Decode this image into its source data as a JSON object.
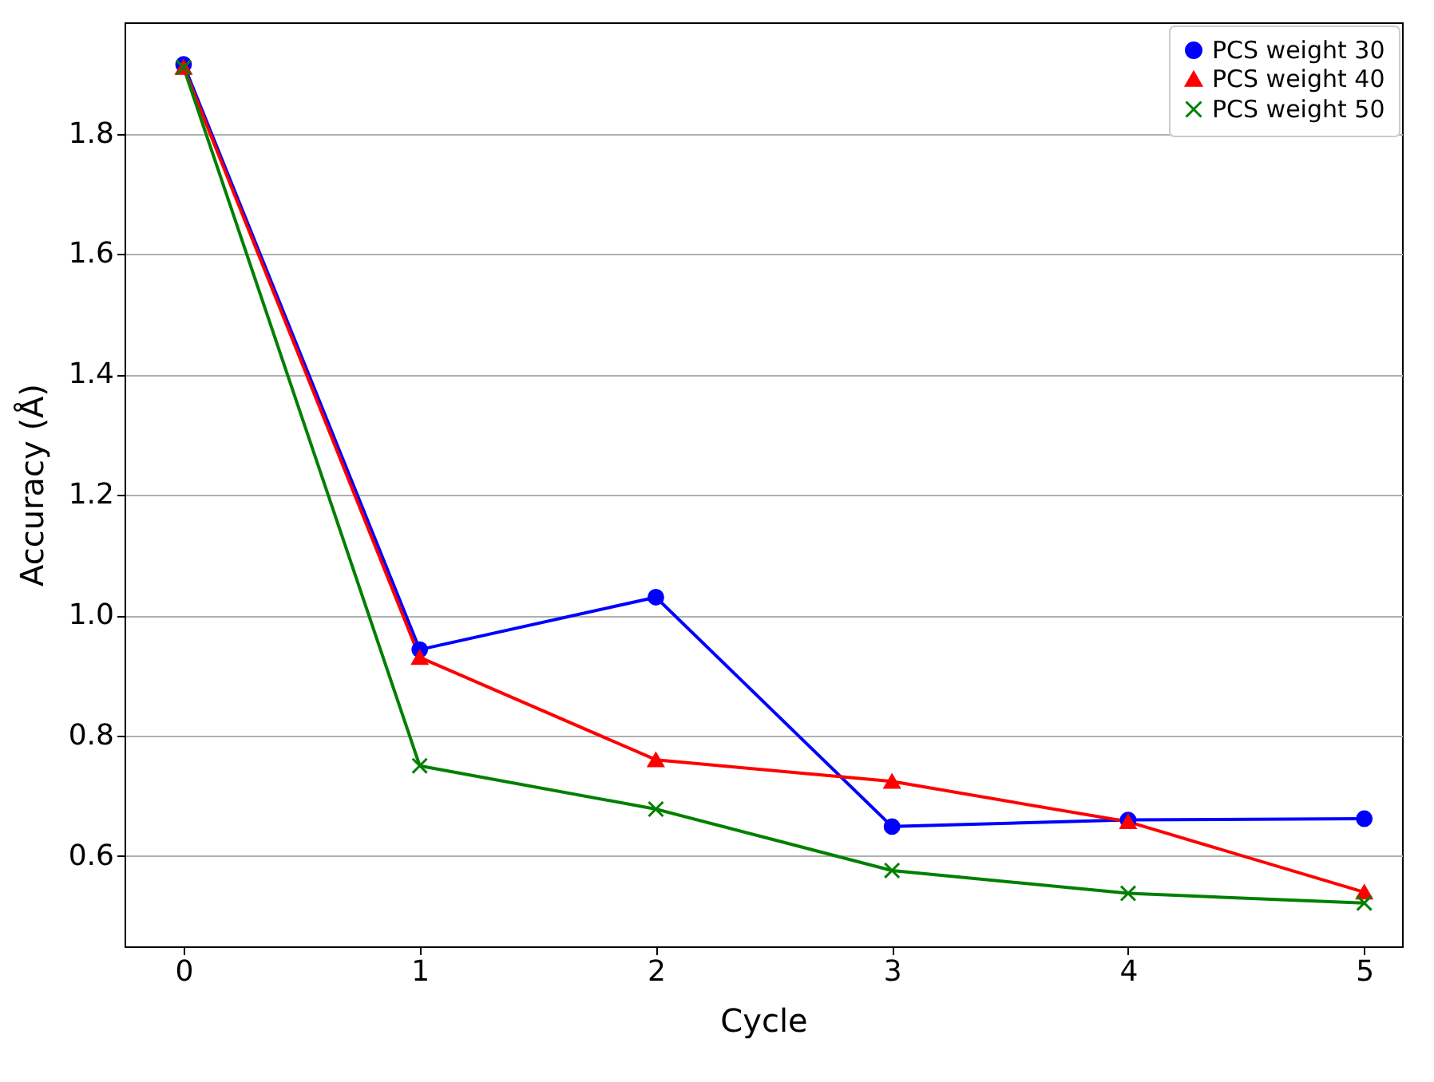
{
  "chart_data": {
    "type": "line",
    "xlabel": "Cycle",
    "ylabel": "Accuracy (Å)",
    "x": [
      0,
      1,
      2,
      3,
      4,
      5
    ],
    "series": [
      {
        "name": "PCS weight 30",
        "color": "#0000ff",
        "marker": "circle",
        "values": [
          1.915,
          0.943,
          1.03,
          0.649,
          0.66,
          0.662
        ]
      },
      {
        "name": "PCS weight 40",
        "color": "#ff0000",
        "marker": "triangle",
        "values": [
          1.91,
          0.93,
          0.76,
          0.724,
          0.657,
          0.54
        ]
      },
      {
        "name": "PCS weight 50",
        "color": "#008000",
        "marker": "cross",
        "values": [
          1.91,
          0.75,
          0.678,
          0.576,
          0.538,
          0.522
        ]
      }
    ],
    "xlim": [
      -0.25,
      5.16
    ],
    "xticks": [
      0,
      1,
      2,
      3,
      4,
      5
    ],
    "ylim": [
      0.45,
      1.985
    ],
    "yticks": [
      0.6,
      0.8,
      {
        "value": 1,
        "label": "1.0"
      },
      1.2,
      1.4,
      1.6,
      1.8
    ],
    "grid": "y",
    "legend": "top right",
    "line_style": "solid"
  }
}
